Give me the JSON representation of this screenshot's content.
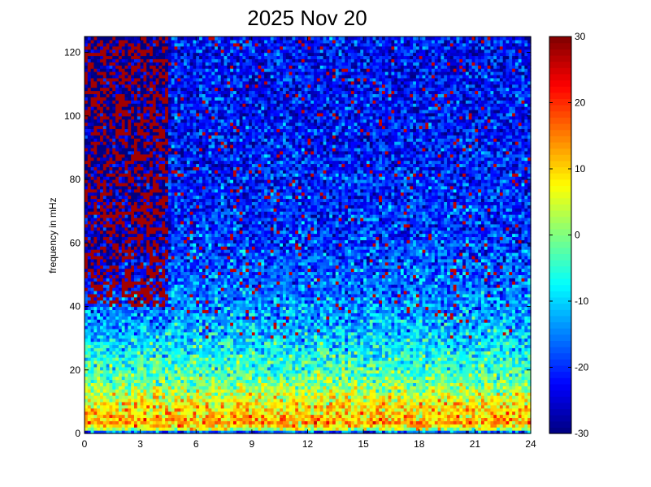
{
  "chart_data": {
    "type": "heatmap",
    "title": "2025 Nov 20",
    "xlabel": "",
    "ylabel": "frequency in mHz",
    "xlim": [
      0,
      24
    ],
    "ylim": [
      0,
      125
    ],
    "x_ticks": [
      0,
      3,
      6,
      9,
      12,
      15,
      18,
      21,
      24
    ],
    "y_ticks": [
      0,
      20,
      40,
      60,
      80,
      100,
      120
    ],
    "colormap": "jet",
    "color_range": [
      -30,
      30
    ],
    "colorbar_ticks": [
      -30,
      -20,
      -10,
      0,
      10,
      20,
      30
    ],
    "grid": false,
    "time_bins": 144,
    "freq_bins": 125,
    "level_model": {
      "freq_mhz": [
        0,
        1.5,
        3,
        6,
        10,
        15,
        20,
        25,
        30,
        40,
        50,
        60,
        80,
        100,
        125
      ],
      "mean_db": [
        -28,
        4,
        13,
        10,
        7,
        1,
        -4,
        -7,
        -10,
        -14,
        -17,
        -19,
        -21,
        -22,
        -22
      ],
      "quiet_period_hours": [
        0,
        4.5
      ],
      "quiet_period_high_freq_db": 28,
      "noise_db": 7
    }
  }
}
